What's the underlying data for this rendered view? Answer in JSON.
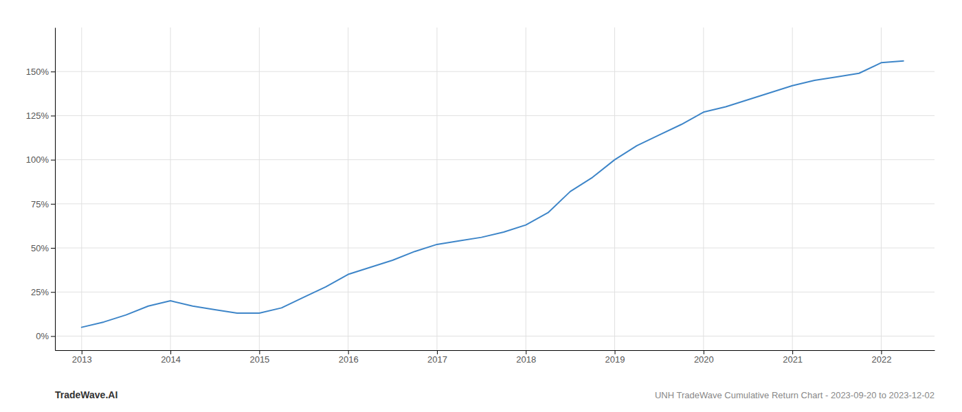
{
  "chart_data": {
    "type": "line",
    "title": "UNH TradeWave Cumulative Return Chart - 2023-09-20 to 2023-12-02",
    "annotations": [
      "TradeWave.AI"
    ],
    "x": [
      2013,
      2013.25,
      2013.5,
      2013.75,
      2014,
      2014.25,
      2014.5,
      2014.75,
      2015,
      2015.25,
      2015.5,
      2015.75,
      2016,
      2016.25,
      2016.5,
      2016.75,
      2017,
      2017.25,
      2017.5,
      2017.75,
      2018,
      2018.25,
      2018.5,
      2018.75,
      2019,
      2019.25,
      2019.5,
      2019.75,
      2020,
      2020.25,
      2020.5,
      2020.75,
      2021,
      2021.25,
      2021.5,
      2021.75,
      2022,
      2022.25
    ],
    "values": [
      5,
      8,
      12,
      17,
      20,
      17,
      15,
      13,
      13,
      16,
      22,
      28,
      35,
      39,
      43,
      48,
      52,
      54,
      56,
      59,
      63,
      70,
      82,
      90,
      100,
      108,
      114,
      120,
      127,
      130,
      134,
      138,
      142,
      145,
      147,
      149,
      155,
      156
    ],
    "color": "#3d85c8",
    "xlim": [
      2012.7,
      2022.6
    ],
    "ylim": [
      -8,
      175
    ],
    "xticks": [
      2013,
      2014,
      2015,
      2016,
      2017,
      2018,
      2019,
      2020,
      2021,
      2022
    ],
    "yticks": [
      {
        "value": 0,
        "label": "0%"
      },
      {
        "value": 25,
        "label": "25%"
      },
      {
        "value": 50,
        "label": "50%"
      },
      {
        "value": 75,
        "label": "75%"
      },
      {
        "value": 100,
        "label": "100%"
      },
      {
        "value": 125,
        "label": "125%"
      },
      {
        "value": 150,
        "label": "150%"
      }
    ],
    "grid": true
  }
}
